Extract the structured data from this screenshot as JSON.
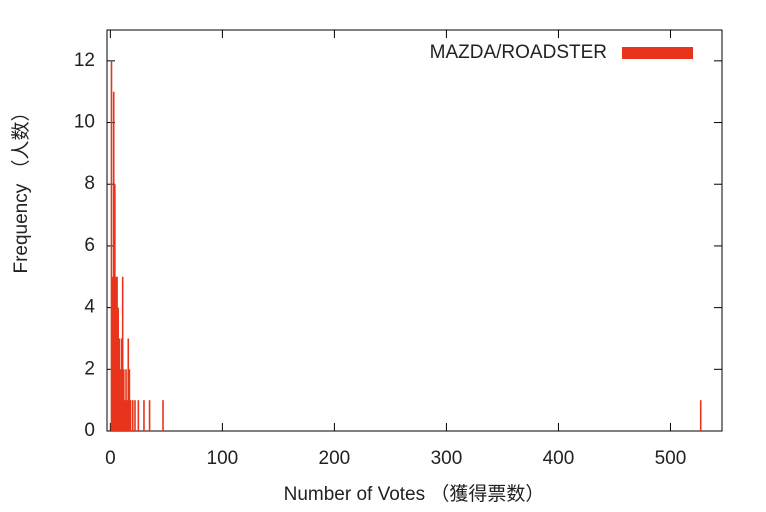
{
  "chart_data": {
    "type": "impulse",
    "xlabel": "Number of Votes （獲得票数）",
    "ylabel": "Frequency （人数）",
    "series": [
      {
        "name": "MAZDA/ROADSTER",
        "color": "#e8341c",
        "x": [
          1,
          2,
          3,
          4,
          5,
          6,
          7,
          8,
          9,
          10,
          11,
          12,
          13,
          14,
          15,
          16,
          17,
          18,
          20,
          22,
          25,
          30,
          35,
          47,
          527
        ],
        "values": [
          12,
          5,
          11,
          8,
          5,
          5,
          4,
          3,
          2,
          3,
          5,
          2,
          1,
          2,
          1,
          3,
          2,
          1,
          1,
          1,
          1,
          1,
          1,
          1,
          1
        ]
      }
    ],
    "xlim": [
      -3,
      546
    ],
    "xticks": [
      0,
      100,
      200,
      300,
      400,
      500
    ],
    "ylim": [
      0,
      13
    ],
    "yticks": [
      0,
      2,
      4,
      6,
      8,
      10,
      12
    ],
    "legend": "top-right"
  }
}
